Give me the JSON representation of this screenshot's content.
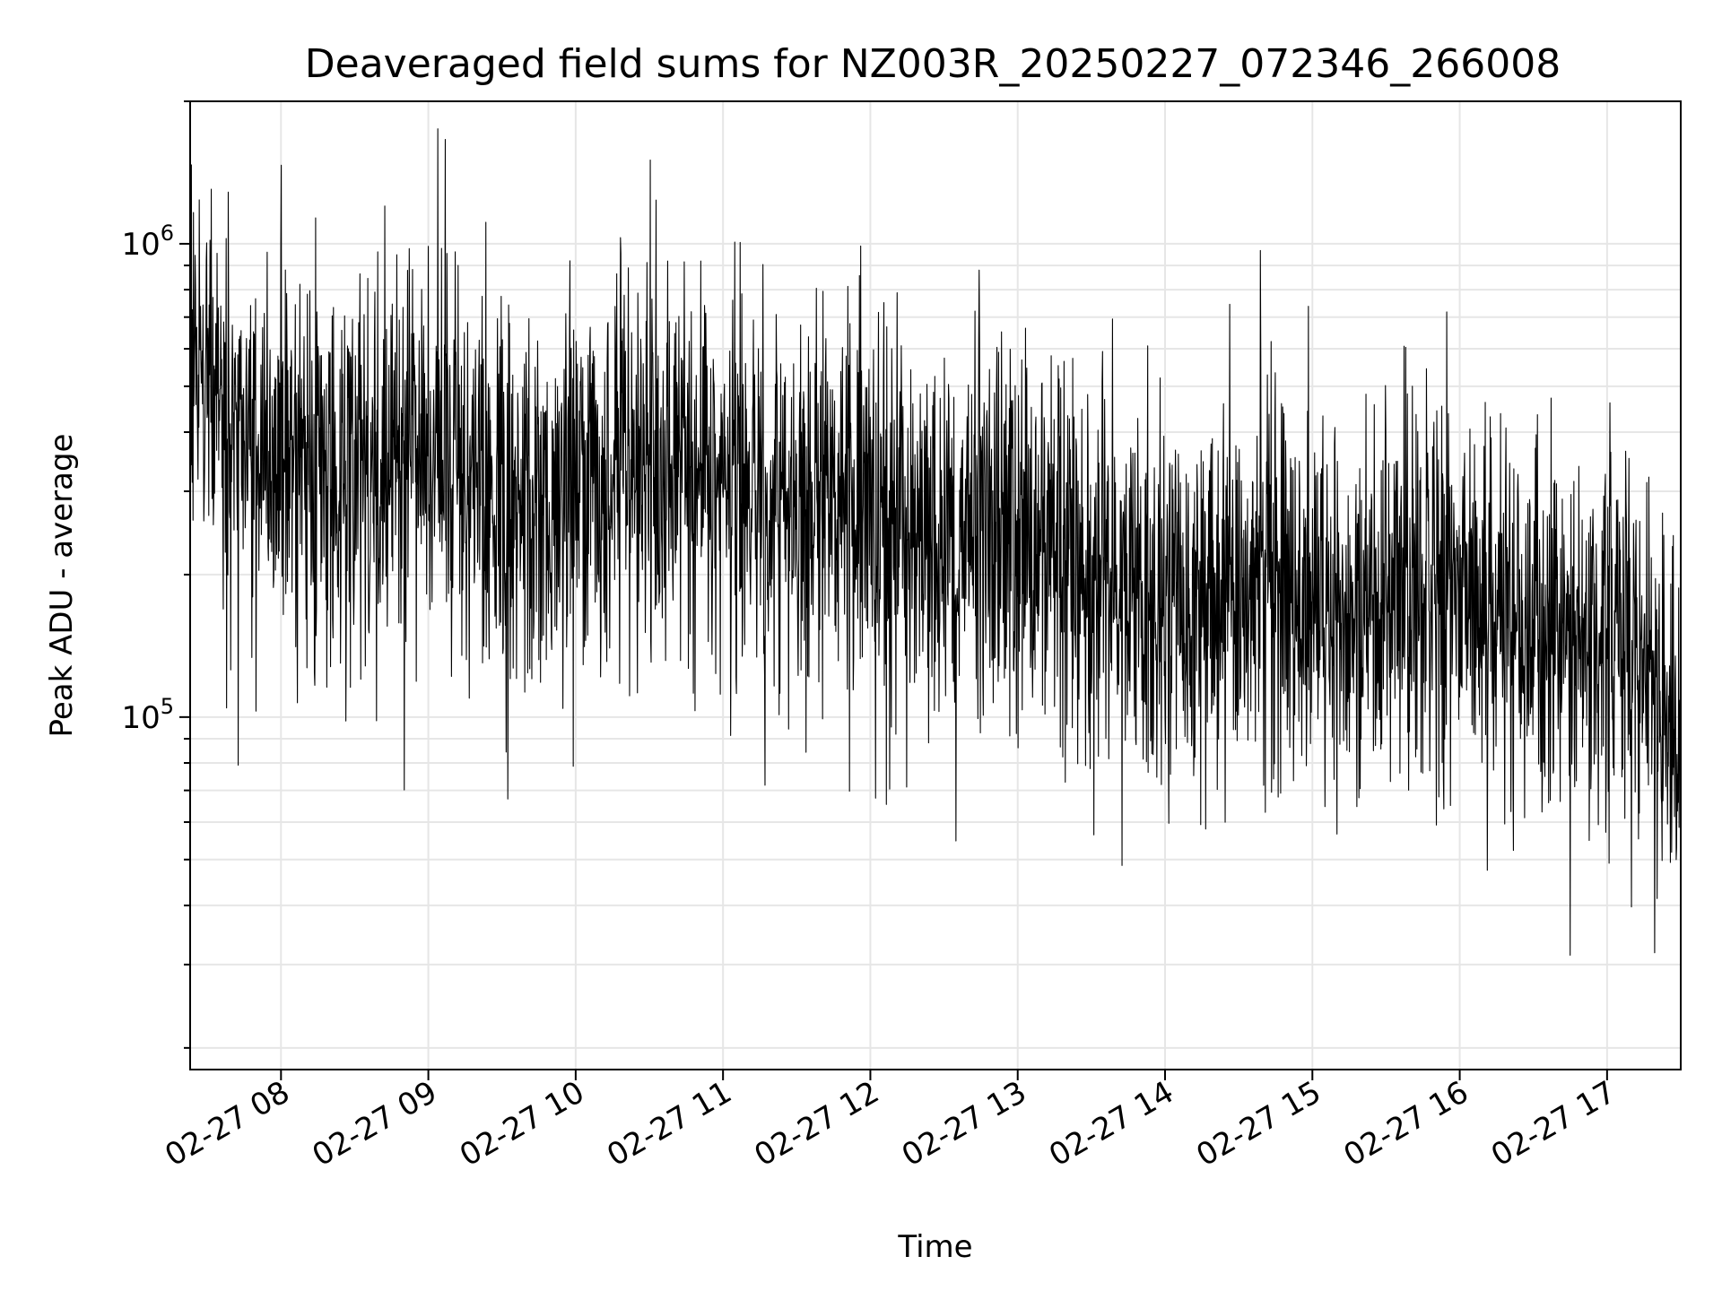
{
  "chart_data": {
    "type": "line",
    "title": "Deaveraged field sums for NZ003R_20250227_072346_266008",
    "xlabel": "Time",
    "ylabel": "Peak ADU - average",
    "yscale": "log",
    "ylim": [
      18000,
      2000000
    ],
    "xlim": [
      "02-27 07:23",
      "02-27 17:30"
    ],
    "grid": true,
    "line_color": "#000000",
    "x_ticks": [
      {
        "value": "02-27 08:00",
        "label": "02-27 08"
      },
      {
        "value": "02-27 09:00",
        "label": "02-27 09"
      },
      {
        "value": "02-27 10:00",
        "label": "02-27 10"
      },
      {
        "value": "02-27 11:00",
        "label": "02-27 11"
      },
      {
        "value": "02-27 12:00",
        "label": "02-27 12"
      },
      {
        "value": "02-27 13:00",
        "label": "02-27 13"
      },
      {
        "value": "02-27 14:00",
        "label": "02-27 14"
      },
      {
        "value": "02-27 15:00",
        "label": "02-27 15"
      },
      {
        "value": "02-27 16:00",
        "label": "02-27 16"
      },
      {
        "value": "02-27 17:00",
        "label": "02-27 17"
      }
    ],
    "y_ticks": [
      {
        "value": 100000,
        "base": "10",
        "exp": "5"
      },
      {
        "value": 1000000,
        "base": "10",
        "exp": "6"
      }
    ],
    "series": [
      {
        "x": [
          "02-27 07:23",
          "02-27 07:30",
          "02-27 07:40",
          "02-27 07:50",
          "02-27 08:00",
          "02-27 08:15",
          "02-27 08:30",
          "02-27 08:45",
          "02-27 09:00",
          "02-27 09:15",
          "02-27 09:30",
          "02-27 09:45",
          "02-27 10:00",
          "02-27 10:15",
          "02-27 10:30",
          "02-27 10:45",
          "02-27 11:00",
          "02-27 11:15",
          "02-27 11:30",
          "02-27 11:45",
          "02-27 12:00",
          "02-27 12:15",
          "02-27 12:30",
          "02-27 12:45",
          "02-27 13:00",
          "02-27 13:15",
          "02-27 13:30",
          "02-27 13:45",
          "02-27 14:00",
          "02-27 14:15",
          "02-27 14:30",
          "02-27 14:45",
          "02-27 15:00",
          "02-27 15:15",
          "02-27 15:30",
          "02-27 15:45",
          "02-27 16:00",
          "02-27 16:15",
          "02-27 16:30",
          "02-27 16:45",
          "02-27 17:00",
          "02-27 17:15",
          "02-27 17:30"
        ],
        "y": [
          600000,
          500000,
          380000,
          330000,
          320000,
          330000,
          340000,
          360000,
          350000,
          300000,
          280000,
          300000,
          300000,
          310000,
          330000,
          330000,
          300000,
          290000,
          290000,
          280000,
          270000,
          260000,
          250000,
          240000,
          240000,
          230000,
          200000,
          180000,
          170000,
          180000,
          190000,
          190000,
          180000,
          170000,
          180000,
          190000,
          190000,
          170000,
          150000,
          140000,
          150000,
          130000,
          70000
        ]
      }
    ]
  }
}
